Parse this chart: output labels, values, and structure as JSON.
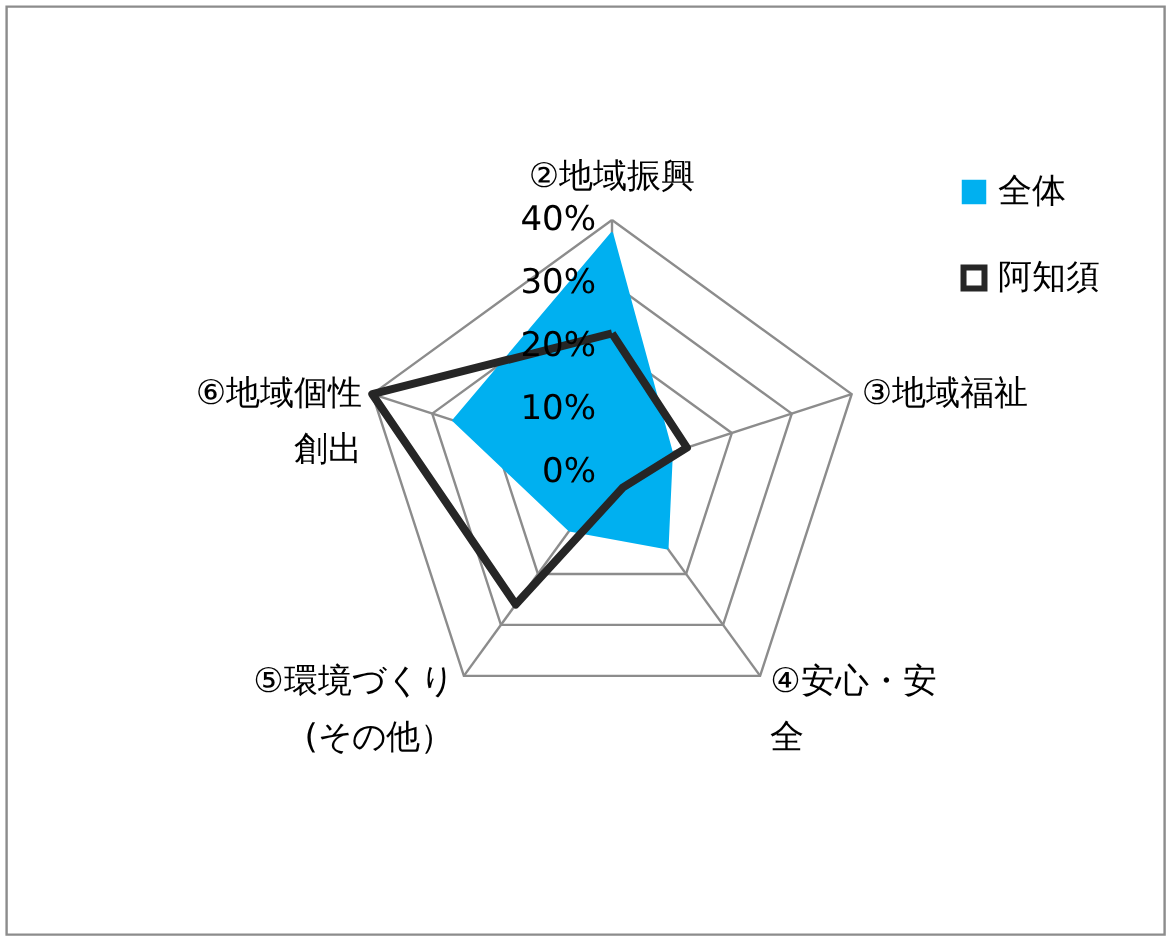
{
  "chart_data": {
    "type": "radar",
    "categories": [
      "②地域振興",
      "③地域福祉",
      "④安心・安全",
      "⑤環境づくり(その他）",
      "⑥地域個性創出"
    ],
    "series": [
      {
        "name": "全体",
        "type": "area",
        "color": "#00b0f0",
        "values": [
          38,
          10,
          15,
          11.5,
          26.5
        ]
      },
      {
        "name": "阿知須",
        "color": "#262626",
        "values": [
          22,
          12.5,
          3,
          26,
          40
        ]
      }
    ],
    "ylim": [
      0,
      40
    ],
    "yticks": [
      {
        "value": 0,
        "label": "0%"
      },
      {
        "value": 10,
        "label": "10%"
      },
      {
        "value": 20,
        "label": "20%"
      },
      {
        "value": 30,
        "label": "30%"
      },
      {
        "value": 40,
        "label": "40%"
      }
    ],
    "grid": true,
    "legend": "top right"
  }
}
